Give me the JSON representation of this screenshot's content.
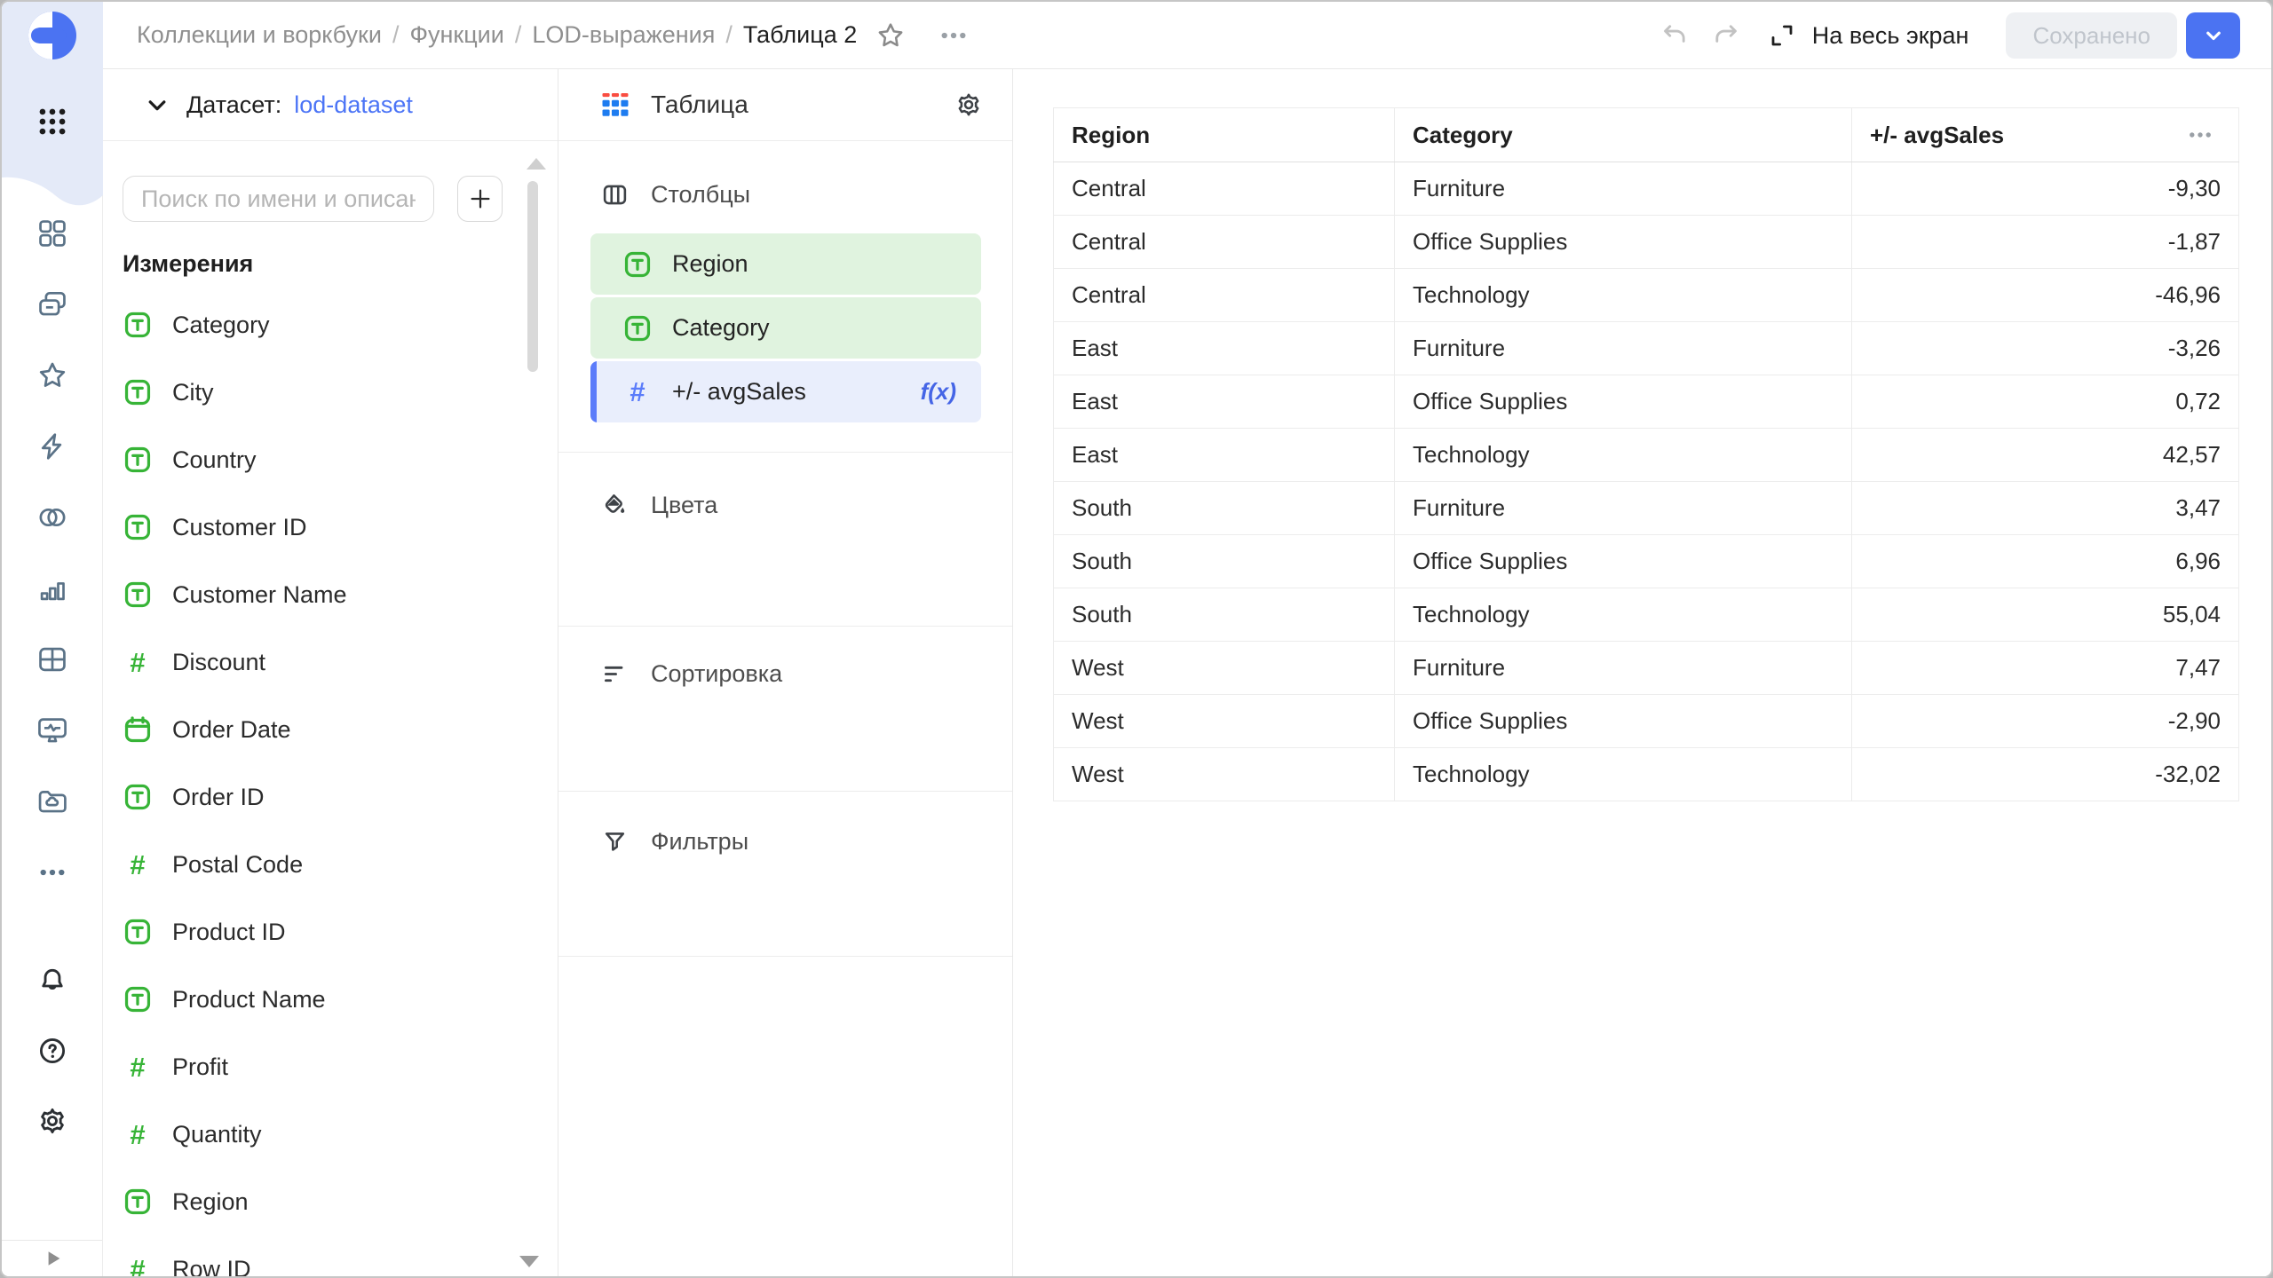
{
  "topbar": {
    "breadcrumbs": [
      "Коллекции и воркбуки",
      "Функции",
      "LOD-выражения"
    ],
    "separator": "/",
    "title": "Таблица 2",
    "fullscreen_label": "На весь экран",
    "save_button_label": "Сохранено"
  },
  "left_rail": {
    "nav_icons": [
      "widgets-icon",
      "collections-icon",
      "favorites-star-icon",
      "functions-bolt-icon",
      "datasets-venn-icon",
      "charts-bar-icon",
      "tables-grid-icon",
      "monitoring-screen-icon",
      "storage-folder-icon",
      "more-ellipsis-icon"
    ],
    "footer_icons": [
      "notifications-bell-icon",
      "help-icon",
      "settings-gear-icon"
    ]
  },
  "dataset_panel": {
    "label": "Датасет:",
    "dataset_name": "lod-dataset",
    "search_placeholder": "Поиск по имени и описанию",
    "section_title": "Измерения",
    "fields": [
      {
        "type": "text",
        "label": "Category"
      },
      {
        "type": "text",
        "label": "City"
      },
      {
        "type": "text",
        "label": "Country"
      },
      {
        "type": "text",
        "label": "Customer ID"
      },
      {
        "type": "text",
        "label": "Customer Name"
      },
      {
        "type": "number",
        "label": "Discount"
      },
      {
        "type": "date",
        "label": "Order Date"
      },
      {
        "type": "text",
        "label": "Order ID"
      },
      {
        "type": "number",
        "label": "Postal Code"
      },
      {
        "type": "text",
        "label": "Product ID"
      },
      {
        "type": "text",
        "label": "Product Name"
      },
      {
        "type": "number",
        "label": "Profit"
      },
      {
        "type": "number",
        "label": "Quantity"
      },
      {
        "type": "text",
        "label": "Region"
      },
      {
        "type": "number",
        "label": "Row ID"
      }
    ]
  },
  "chart_panel": {
    "chart_type": "Таблица",
    "sections": {
      "columns": {
        "label": "Столбцы"
      },
      "colors": {
        "label": "Цвета"
      },
      "sorting": {
        "label": "Сортировка"
      },
      "filters": {
        "label": "Фильтры"
      }
    },
    "chips": [
      {
        "type": "text",
        "label": "Region",
        "style": "dimension",
        "selected": false,
        "formula": ""
      },
      {
        "type": "text",
        "label": "Category",
        "style": "dimension",
        "selected": false,
        "formula": ""
      },
      {
        "type": "number",
        "label": "+/- avgSales",
        "style": "measure",
        "selected": true,
        "formula": "f(x)"
      }
    ]
  },
  "table": {
    "columns": [
      {
        "label": "Region",
        "align": "left"
      },
      {
        "label": "Category",
        "align": "left"
      },
      {
        "label": "+/- avgSales",
        "align": "right"
      }
    ],
    "rows": [
      [
        "Central",
        "Furniture",
        "-9,30"
      ],
      [
        "Central",
        "Office Supplies",
        "-1,87"
      ],
      [
        "Central",
        "Technology",
        "-46,96"
      ],
      [
        "East",
        "Furniture",
        "-3,26"
      ],
      [
        "East",
        "Office Supplies",
        "0,72"
      ],
      [
        "East",
        "Technology",
        "42,57"
      ],
      [
        "South",
        "Furniture",
        "3,47"
      ],
      [
        "South",
        "Office Supplies",
        "6,96"
      ],
      [
        "South",
        "Technology",
        "55,04"
      ],
      [
        "West",
        "Furniture",
        "7,47"
      ],
      [
        "West",
        "Office Supplies",
        "-2,90"
      ],
      [
        "West",
        "Technology",
        "-32,02"
      ]
    ]
  },
  "colors": {
    "accent_blue": "#4b73f2",
    "link_blue": "#4b74f6",
    "field_green": "#37b437",
    "chip_green_bg": "#e0f3df",
    "chip_blue_bg": "#e9eefc",
    "chip_blue_bar": "#5b7cfa",
    "rail_icon_slate": "#5a7287",
    "sidebar_blob": "#e4eaf8"
  }
}
